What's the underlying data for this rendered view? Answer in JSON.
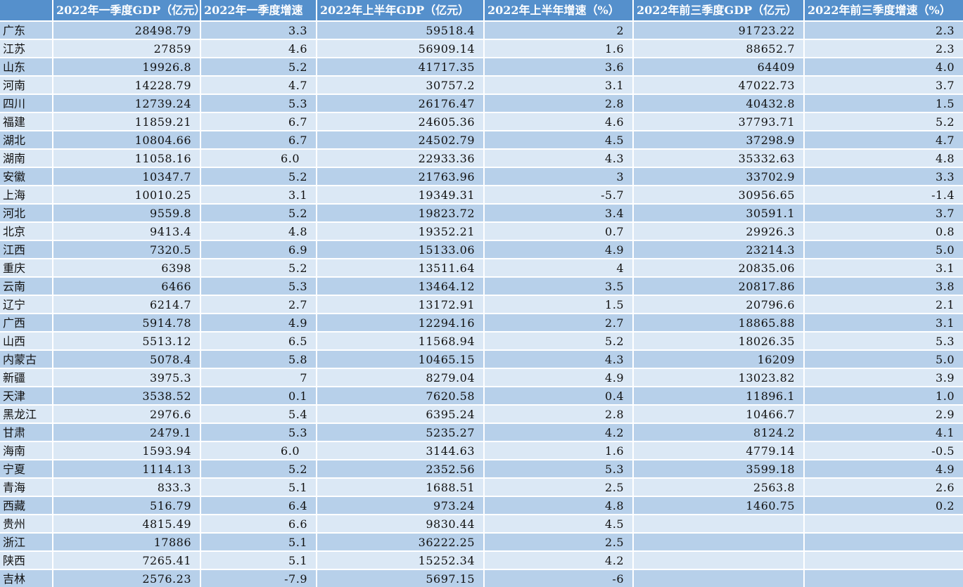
{
  "colors": {
    "header_bg": "#5590cc",
    "header_text": "#ffffff",
    "row_odd_bg": "#b7d0ea",
    "row_even_bg": "#dbe8f5",
    "grid": "#ffffff",
    "cell_text": "#111111"
  },
  "chart_data": {
    "type": "table",
    "columns": [
      "",
      "2022年一季度GDP（亿元）",
      "2022年一季度增速",
      "2022年上半年GDP（亿元）",
      "2022年上半年增速（%）",
      "2022年前三季度GDP（亿元）",
      "2022年前三季度增速（%）"
    ],
    "rows": [
      [
        "广东",
        "28498.79",
        "3.3",
        "59518.4",
        "2",
        "91723.22",
        "2.3"
      ],
      [
        "江苏",
        "27859",
        "4.6",
        "56909.14",
        "1.6",
        "88652.7",
        "2.3"
      ],
      [
        "山东",
        "19926.8",
        "5.2",
        "41717.35",
        "3.6",
        "64409",
        "4.0"
      ],
      [
        "河南",
        "14228.79",
        "4.7",
        "30757.2",
        "3.1",
        "47022.73",
        "3.7"
      ],
      [
        "四川",
        "12739.24",
        "5.3",
        "26176.47",
        "2.8",
        "40432.8",
        "1.5"
      ],
      [
        "福建",
        "11859.21",
        "6.7",
        "24605.36",
        "4.6",
        "37793.71",
        "5.2"
      ],
      [
        "湖北",
        "10804.66",
        "6.7",
        "24502.79",
        "4.5",
        "37298.9",
        "4.7"
      ],
      [
        "湖南",
        "11058.16",
        "6.0",
        "22933.36",
        "4.3",
        "35332.63",
        "4.8"
      ],
      [
        "安徽",
        "10347.7",
        "5.2",
        "21763.96",
        "3",
        "33702.9",
        "3.3"
      ],
      [
        "上海",
        "10010.25",
        "3.1",
        "19349.31",
        "-5.7",
        "30956.65",
        "-1.4"
      ],
      [
        "河北",
        "9559.8",
        "5.2",
        "19823.72",
        "3.4",
        "30591.1",
        "3.7"
      ],
      [
        "北京",
        "9413.4",
        "4.8",
        "19352.21",
        "0.7",
        "29926.3",
        "0.8"
      ],
      [
        "江西",
        "7320.5",
        "6.9",
        "15133.06",
        "4.9",
        "23214.3",
        "5.0"
      ],
      [
        "重庆",
        "6398",
        "5.2",
        "13511.64",
        "4",
        "20835.06",
        "3.1"
      ],
      [
        "云南",
        "6466",
        "5.3",
        "13464.12",
        "3.5",
        "20817.86",
        "3.8"
      ],
      [
        "辽宁",
        "6214.7",
        "2.7",
        "13172.91",
        "1.5",
        "20796.6",
        "2.1"
      ],
      [
        "广西",
        "5914.78",
        "4.9",
        "12294.16",
        "2.7",
        "18865.88",
        "3.1"
      ],
      [
        "山西",
        "5513.12",
        "6.5",
        "11568.94",
        "5.2",
        "18026.35",
        "5.3"
      ],
      [
        "内蒙古",
        "5078.4",
        "5.8",
        "10465.15",
        "4.3",
        "16209",
        "5.0"
      ],
      [
        "新疆",
        "3975.3",
        "7",
        "8279.04",
        "4.9",
        "13023.82",
        "3.9"
      ],
      [
        "天津",
        "3538.52",
        "0.1",
        "7620.58",
        "0.4",
        "11896.1",
        "1.0"
      ],
      [
        "黑龙江",
        "2976.6",
        "5.4",
        "6395.24",
        "2.8",
        "10466.7",
        "2.9"
      ],
      [
        "甘肃",
        "2479.1",
        "5.3",
        "5235.27",
        "4.2",
        "8124.2",
        "4.1"
      ],
      [
        "海南",
        "1593.94",
        "6.0",
        "3144.63",
        "1.6",
        "4779.14",
        "-0.5"
      ],
      [
        "宁夏",
        "1114.13",
        "5.2",
        "2352.56",
        "5.3",
        "3599.18",
        "4.9"
      ],
      [
        "青海",
        "833.3",
        "5.1",
        "1688.51",
        "2.5",
        "2563.8",
        "2.6"
      ],
      [
        "西藏",
        "516.79",
        "6.4",
        "973.24",
        "4.8",
        "1460.75",
        "0.2"
      ],
      [
        "贵州",
        "4815.49",
        "6.6",
        "9830.44",
        "4.5",
        "",
        ""
      ],
      [
        "浙江",
        "17886",
        "5.1",
        "36222.25",
        "2.5",
        "",
        ""
      ],
      [
        "陕西",
        "7265.41",
        "5.1",
        "15252.34",
        "4.2",
        "",
        ""
      ],
      [
        "吉林",
        "2576.23",
        "-7.9",
        "5697.15",
        "-6",
        "",
        ""
      ]
    ],
    "trailing_space_cells": [
      [
        7,
        2
      ],
      [
        23,
        2
      ]
    ],
    "layout_hints": {
      "banded_rows": true,
      "first_data_row_band": "odd-darker",
      "empty_trailing_cells_rows": [
        "贵州",
        "浙江",
        "陕西",
        "吉林"
      ]
    }
  }
}
